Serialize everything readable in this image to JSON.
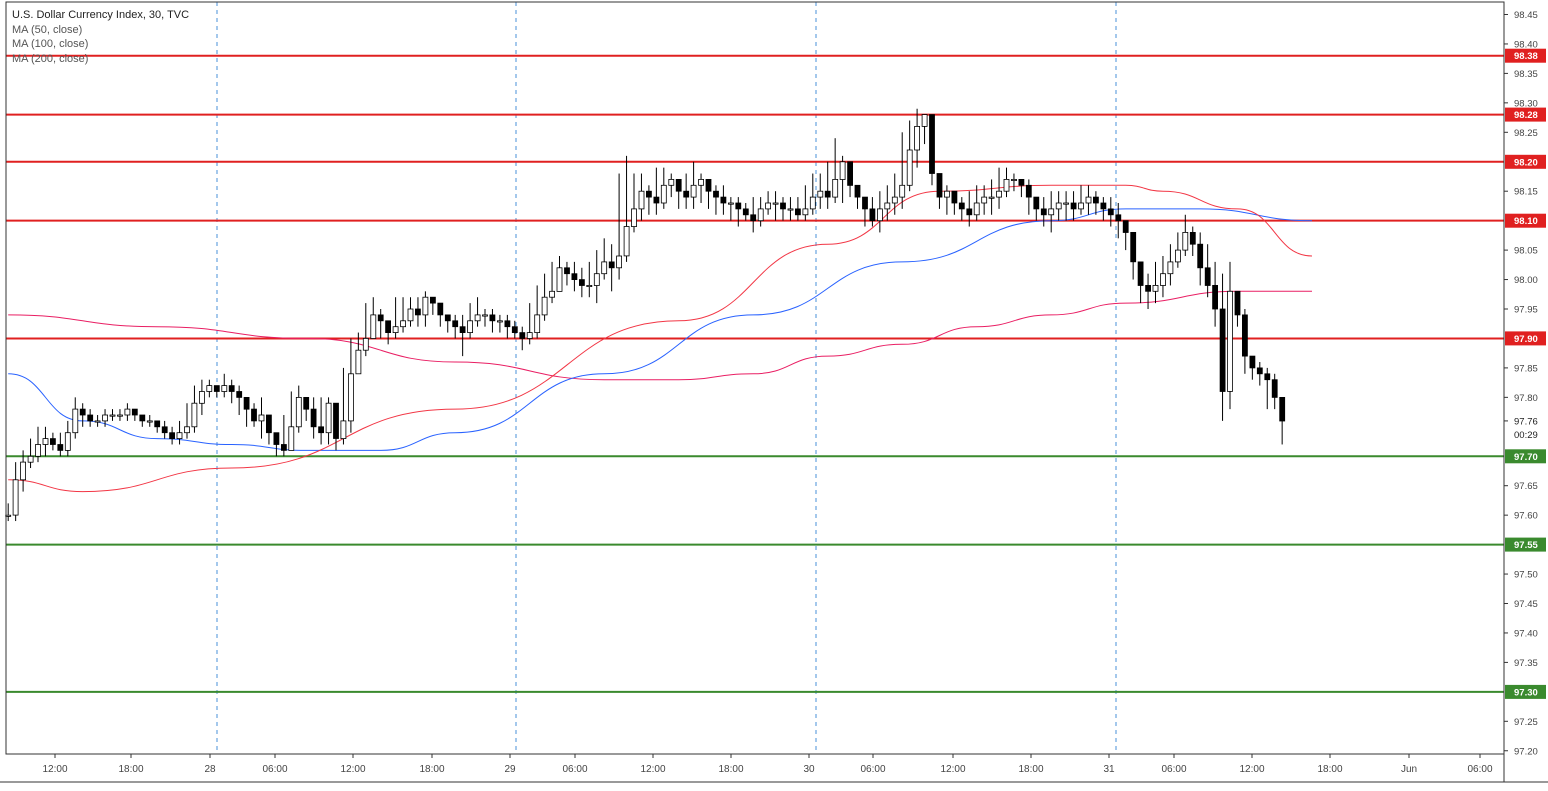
{
  "chart_data": {
    "type": "candlestick",
    "title": "U.S. Dollar Currency Index, 30, TVC",
    "indicators": [
      {
        "label": "MA (50, close)",
        "color": "#f23645"
      },
      {
        "label": "MA (100, close)",
        "color": "#2962ff"
      },
      {
        "label": "MA (200, close)",
        "color": "#e91e63"
      }
    ],
    "ylim": [
      97.2,
      98.45
    ],
    "y_ticks": [
      "98.45",
      "98.40",
      "98.35",
      "98.30",
      "98.25",
      "98.15",
      "98.05",
      "98.00",
      "97.95",
      "97.85",
      "97.80",
      "97.65",
      "97.60",
      "97.50",
      "97.45",
      "97.40",
      "97.35",
      "97.25",
      "97.20"
    ],
    "x_ticks": [
      "12:00",
      "18:00",
      "28",
      "06:00",
      "12:00",
      "18:00",
      "29",
      "06:00",
      "12:00",
      "18:00",
      "30",
      "06:00",
      "12:00",
      "18:00",
      "31",
      "06:00",
      "12:00",
      "18:00",
      "Jun",
      "06:00"
    ],
    "grid": "vertical dashed day separators",
    "candles": {
      "start_value": 97.6,
      "values": [
        97.6,
        97.66,
        97.69,
        97.7,
        97.72,
        97.73,
        97.72,
        97.71,
        97.74,
        97.78,
        97.77,
        97.76,
        97.76,
        97.77,
        97.77,
        97.77,
        97.78,
        97.77,
        97.76,
        97.76,
        97.75,
        97.74,
        97.73,
        97.74,
        97.75,
        97.79,
        97.81,
        97.82,
        97.81,
        97.82,
        97.81,
        97.8,
        97.78,
        97.76,
        97.77,
        97.74,
        97.72,
        97.71,
        97.75,
        97.8,
        97.78,
        97.75,
        97.74,
        97.79,
        97.73,
        97.76,
        97.84,
        97.88,
        97.9,
        97.94,
        97.93,
        97.91,
        97.92,
        97.93,
        97.95,
        97.94,
        97.97,
        97.96,
        97.94,
        97.93,
        97.92,
        97.91,
        97.93,
        97.94,
        97.94,
        97.93,
        97.93,
        97.92,
        97.91,
        97.9,
        97.91,
        97.94,
        97.97,
        97.98,
        98.02,
        98.01,
        98.0,
        97.99,
        97.99,
        98.01,
        98.03,
        98.02,
        98.04,
        98.09,
        98.12,
        98.15,
        98.14,
        98.13,
        98.16,
        98.17,
        98.15,
        98.14,
        98.16,
        98.17,
        98.15,
        98.14,
        98.13,
        98.13,
        98.12,
        98.11,
        98.1,
        98.12,
        98.13,
        98.13,
        98.12,
        98.12,
        98.11,
        98.12,
        98.14,
        98.15,
        98.14,
        98.17,
        98.2,
        98.16,
        98.14,
        98.12,
        98.1,
        98.12,
        98.13,
        98.14,
        98.16,
        98.22,
        98.26,
        98.28,
        98.18,
        98.14,
        98.15,
        98.13,
        98.12,
        98.11,
        98.13,
        98.14,
        98.14,
        98.15,
        98.17,
        98.17,
        98.16,
        98.14,
        98.12,
        98.11,
        98.12,
        98.13,
        98.13,
        98.12,
        98.13,
        98.14,
        98.13,
        98.12,
        98.11,
        98.1,
        98.08,
        98.03,
        97.99,
        97.98,
        97.99,
        98.01,
        98.03,
        98.05,
        98.08,
        98.06,
        98.02,
        97.99,
        97.95,
        97.81,
        97.98,
        97.94,
        97.87,
        97.85,
        97.84,
        97.83,
        97.8,
        97.76
      ],
      "highs": [
        97.62,
        97.69,
        97.71,
        97.73,
        97.75,
        97.75,
        97.74,
        97.74,
        97.76,
        97.8,
        97.79,
        97.78,
        97.77,
        97.78,
        97.78,
        97.78,
        97.79,
        97.78,
        97.77,
        97.77,
        97.76,
        97.76,
        97.75,
        97.76,
        97.79,
        97.82,
        97.83,
        97.83,
        97.82,
        97.84,
        97.83,
        97.82,
        97.8,
        97.79,
        97.8,
        97.77,
        97.74,
        97.77,
        97.81,
        97.82,
        97.8,
        97.8,
        97.8,
        97.8,
        97.77,
        97.85,
        97.9,
        97.91,
        97.96,
        97.97,
        97.95,
        97.93,
        97.97,
        97.97,
        97.97,
        97.97,
        97.98,
        97.97,
        97.96,
        97.94,
        97.94,
        97.94,
        97.96,
        97.97,
        97.95,
        97.95,
        97.94,
        97.94,
        97.93,
        97.92,
        97.96,
        97.99,
        98.01,
        98.03,
        98.04,
        98.03,
        98.03,
        98.02,
        98.03,
        98.05,
        98.07,
        98.06,
        98.18,
        98.21,
        98.18,
        98.18,
        98.16,
        98.19,
        98.19,
        98.18,
        98.17,
        98.18,
        98.2,
        98.18,
        98.16,
        98.16,
        98.16,
        98.14,
        98.14,
        98.13,
        98.14,
        98.14,
        98.15,
        98.15,
        98.14,
        98.14,
        98.14,
        98.16,
        98.18,
        98.18,
        98.2,
        98.24,
        98.21,
        98.19,
        98.16,
        98.13,
        98.14,
        98.15,
        98.16,
        98.18,
        98.25,
        98.27,
        98.29,
        98.28,
        98.19,
        98.18,
        98.16,
        98.15,
        98.14,
        98.15,
        98.16,
        98.16,
        98.17,
        98.19,
        98.19,
        98.18,
        98.17,
        98.17,
        98.14,
        98.14,
        98.15,
        98.15,
        98.15,
        98.15,
        98.16,
        98.16,
        98.15,
        98.14,
        98.14,
        98.13,
        98.1,
        98.08,
        98.03,
        98.01,
        98.03,
        98.04,
        98.06,
        98.08,
        98.11,
        98.09,
        98.08,
        98.06,
        98.03,
        98.01,
        98.03,
        97.98,
        97.95,
        97.87,
        97.86,
        97.85,
        97.84,
        97.8
      ],
      "lows": [
        97.59,
        97.59,
        97.64,
        97.68,
        97.69,
        97.7,
        97.71,
        97.7,
        97.7,
        97.73,
        97.75,
        97.75,
        97.75,
        97.75,
        97.76,
        97.76,
        97.76,
        97.76,
        97.75,
        97.75,
        97.74,
        97.73,
        97.72,
        97.72,
        97.73,
        97.74,
        97.77,
        97.8,
        97.8,
        97.8,
        97.79,
        97.77,
        97.75,
        97.75,
        97.73,
        97.72,
        97.7,
        97.7,
        97.71,
        97.74,
        97.76,
        97.73,
        97.72,
        97.72,
        97.71,
        97.72,
        97.74,
        97.84,
        97.87,
        97.9,
        97.9,
        97.89,
        97.9,
        97.91,
        97.92,
        97.92,
        97.92,
        97.94,
        97.92,
        97.91,
        97.9,
        97.87,
        97.9,
        97.92,
        97.92,
        97.91,
        97.91,
        97.9,
        97.9,
        97.88,
        97.89,
        97.9,
        97.93,
        97.96,
        97.98,
        97.99,
        97.98,
        97.97,
        97.97,
        97.96,
        98.0,
        97.98,
        98.0,
        98.03,
        98.08,
        98.1,
        98.11,
        98.11,
        98.12,
        98.14,
        98.12,
        98.12,
        98.12,
        98.13,
        98.12,
        98.11,
        98.11,
        98.1,
        98.09,
        98.1,
        98.08,
        98.09,
        98.11,
        98.1,
        98.1,
        98.1,
        98.1,
        98.1,
        98.11,
        98.12,
        98.12,
        98.13,
        98.13,
        98.14,
        98.12,
        98.09,
        98.09,
        98.08,
        98.1,
        98.11,
        98.12,
        98.15,
        98.19,
        98.23,
        98.16,
        98.12,
        98.11,
        98.11,
        98.1,
        98.09,
        98.1,
        98.11,
        98.11,
        98.12,
        98.14,
        98.15,
        98.14,
        98.11,
        98.1,
        98.09,
        98.08,
        98.1,
        98.1,
        98.1,
        98.11,
        98.11,
        98.11,
        98.1,
        98.09,
        98.07,
        98.05,
        98.0,
        97.96,
        97.95,
        97.96,
        97.97,
        97.99,
        98.02,
        98.04,
        98.04,
        97.99,
        97.97,
        97.92,
        97.76,
        97.78,
        97.92,
        97.84,
        97.83,
        97.82,
        97.78,
        97.78,
        97.72
      ]
    },
    "moving_averages": {
      "ma50": {
        "x": [
          0,
          10,
          30,
          60,
          90,
          110,
          125,
          140,
          150,
          155,
          165,
          175
        ],
        "y": [
          97.66,
          97.64,
          97.68,
          97.78,
          97.93,
          98.06,
          98.15,
          98.16,
          98.16,
          98.15,
          98.12,
          98.04
        ]
      },
      "ma100": {
        "x": [
          0,
          10,
          20,
          30,
          40,
          50,
          60,
          80,
          100,
          120,
          140,
          150,
          160,
          175
        ],
        "y": [
          97.84,
          97.76,
          97.73,
          97.72,
          97.71,
          97.71,
          97.74,
          97.84,
          97.94,
          98.03,
          98.1,
          98.12,
          98.12,
          98.1
        ]
      },
      "ma200": {
        "x": [
          0,
          20,
          40,
          60,
          80,
          90,
          100,
          110,
          120,
          130,
          140,
          150,
          165,
          175
        ],
        "y": [
          97.94,
          97.92,
          97.9,
          97.86,
          97.83,
          97.83,
          97.84,
          97.87,
          97.89,
          97.92,
          97.94,
          97.96,
          97.98,
          97.98
        ]
      }
    },
    "horizontal_levels": [
      {
        "value": 98.38,
        "label": "98.38",
        "kind": "resistance",
        "color": "#e02020"
      },
      {
        "value": 98.28,
        "label": "98.28",
        "kind": "resistance",
        "color": "#e02020"
      },
      {
        "value": 98.2,
        "label": "98.20",
        "kind": "resistance",
        "color": "#e02020"
      },
      {
        "value": 98.1,
        "label": "98.10",
        "kind": "resistance",
        "color": "#e02020"
      },
      {
        "value": 97.9,
        "label": "97.90",
        "kind": "resistance",
        "color": "#e02020"
      },
      {
        "value": 97.7,
        "label": "97.70",
        "kind": "support",
        "color": "#3a8a2e"
      },
      {
        "value": 97.55,
        "label": "97.55",
        "kind": "support",
        "color": "#3a8a2e"
      },
      {
        "value": 97.3,
        "label": "97.30",
        "kind": "support",
        "color": "#3a8a2e"
      }
    ],
    "last_price": {
      "value": 97.76,
      "label": "97.76",
      "countdown": "00:29"
    },
    "colors": {
      "up": "#ffffff",
      "down": "#000000",
      "wick": "#000000",
      "separator": "#4a90d9"
    }
  }
}
